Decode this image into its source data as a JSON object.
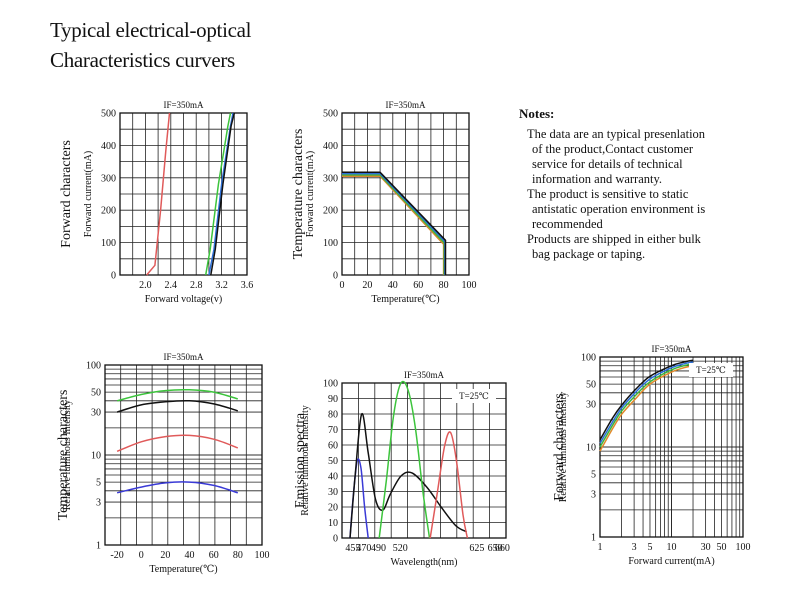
{
  "heading": {
    "line1": "Typical electrical-optical",
    "line2": "Characteristics curvers"
  },
  "notes": {
    "title": "Notes:",
    "items": [
      [
        "The data are an typical presenlation",
        "of the product,Contact customer",
        "service for details of technical",
        "information and warranty."
      ],
      [
        "The product is sensitive to static",
        "antistatic operation environment is",
        "recommended"
      ],
      [
        "Products are shipped in either bulk",
        "bag package or taping."
      ]
    ]
  },
  "chart_data": [
    {
      "id": "forward-voltage",
      "type": "line",
      "label": "IF=350mA",
      "ylabel_main": "Forward characters",
      "ylabel_sub": "Forward current(mA)",
      "xlabel": "Forward voltage(v)",
      "xlim": [
        1.6,
        3.6
      ],
      "ylim": [
        0,
        500
      ],
      "xticks": [
        "2.0",
        "2.4",
        "2.8",
        "3.2",
        "3.6"
      ],
      "xtick_values": [
        2.0,
        2.4,
        2.8,
        3.2,
        3.6
      ],
      "yticks": [
        "0",
        "100",
        "200",
        "300",
        "400",
        "500"
      ],
      "ytick_values": [
        0,
        100,
        200,
        300,
        400,
        500
      ],
      "series": [
        {
          "name": "red",
          "color": "#e05a5a",
          "points": [
            [
              2.02,
              0
            ],
            [
              2.15,
              30
            ],
            [
              2.24,
              200
            ],
            [
              2.32,
              380
            ],
            [
              2.38,
              500
            ]
          ]
        },
        {
          "name": "green",
          "color": "#3cc43c",
          "points": [
            [
              2.95,
              0
            ],
            [
              3.02,
              80
            ],
            [
              3.15,
              280
            ],
            [
              3.3,
              460
            ],
            [
              3.34,
              500
            ]
          ]
        },
        {
          "name": "blue",
          "color": "#2c6fd6",
          "points": [
            [
              3.0,
              0
            ],
            [
              3.08,
              80
            ],
            [
              3.2,
              280
            ],
            [
              3.34,
              460
            ],
            [
              3.38,
              500
            ]
          ]
        },
        {
          "name": "black",
          "color": "#111111",
          "points": [
            [
              3.03,
              0
            ],
            [
              3.1,
              80
            ],
            [
              3.22,
              280
            ],
            [
              3.35,
              460
            ],
            [
              3.4,
              500
            ]
          ]
        }
      ]
    },
    {
      "id": "temperature-current",
      "type": "line",
      "label": "IF=350mA",
      "ylabel_main": "Temperature characters",
      "ylabel_sub": "Forward current(mA)",
      "xlabel": "Temperature(℃)",
      "xlim": [
        0,
        100
      ],
      "ylim": [
        0,
        500
      ],
      "xticks": [
        "0",
        "20",
        "40",
        "60",
        "80",
        "100"
      ],
      "xtick_values": [
        0,
        20,
        40,
        60,
        80,
        100
      ],
      "yticks": [
        "0",
        "100",
        "200",
        "300",
        "400",
        "500"
      ],
      "ytick_values": [
        0,
        100,
        200,
        300,
        400,
        500
      ],
      "series": [
        {
          "name": "orange",
          "color": "#d9862b",
          "points": [
            [
              0,
              305
            ],
            [
              30,
              305
            ],
            [
              80,
              95
            ],
            [
              80,
              0
            ]
          ]
        },
        {
          "name": "green",
          "color": "#3cb43c",
          "points": [
            [
              0,
              309
            ],
            [
              30,
              309
            ],
            [
              80.5,
              99
            ],
            [
              80.5,
              0
            ]
          ]
        },
        {
          "name": "blue",
          "color": "#2c6fd6",
          "points": [
            [
              0,
              313
            ],
            [
              30,
              313
            ],
            [
              81,
              103
            ],
            [
              81,
              0
            ]
          ]
        },
        {
          "name": "black",
          "color": "#111111",
          "points": [
            [
              0,
              317
            ],
            [
              30,
              317
            ],
            [
              81.5,
              107
            ],
            [
              81.5,
              0
            ]
          ]
        }
      ]
    },
    {
      "id": "temperature-intensity",
      "type": "line",
      "label": "IF=350mA",
      "ylabel_main": "Temperature characters",
      "ylabel_sub": "Relative luminous Intensity",
      "xlabel": "Temperature(℃)",
      "xlim": [
        -30,
        100
      ],
      "ylim": [
        1,
        100
      ],
      "yscale": "log",
      "xticks": [
        "-20",
        "0",
        "20",
        "40",
        "60",
        "80",
        "100"
      ],
      "xtick_values": [
        -20,
        0,
        20,
        40,
        60,
        80,
        100
      ],
      "yticks": [
        "1",
        "3",
        "5",
        "10",
        "30",
        "50",
        "100"
      ],
      "ytick_values": [
        1,
        3,
        5,
        10,
        30,
        50,
        100
      ],
      "series": [
        {
          "name": "green",
          "color": "#3cc43c",
          "points": [
            [
              -20,
              40
            ],
            [
              0,
              47
            ],
            [
              20,
              52
            ],
            [
              40,
              53
            ],
            [
              60,
              50
            ],
            [
              80,
              42
            ]
          ]
        },
        {
          "name": "black",
          "color": "#111111",
          "points": [
            [
              -20,
              30
            ],
            [
              0,
              36
            ],
            [
              20,
              39
            ],
            [
              40,
              40
            ],
            [
              60,
              37
            ],
            [
              80,
              31
            ]
          ]
        },
        {
          "name": "red",
          "color": "#e05a5a",
          "points": [
            [
              -20,
              11
            ],
            [
              0,
              14
            ],
            [
              20,
              16
            ],
            [
              40,
              16.5
            ],
            [
              60,
              15
            ],
            [
              80,
              12
            ]
          ]
        },
        {
          "name": "blue",
          "color": "#3a3ad6",
          "points": [
            [
              -20,
              3.8
            ],
            [
              0,
              4.4
            ],
            [
              20,
              4.9
            ],
            [
              40,
              5
            ],
            [
              60,
              4.6
            ],
            [
              80,
              3.8
            ]
          ]
        }
      ]
    },
    {
      "id": "emission-spectra",
      "type": "line",
      "label": "IF=350mA",
      "annotation": "T=25℃",
      "ylabel_main": "Emission spectra",
      "ylabel_sub": "Relative luminous Intensity",
      "xlabel": "Wavelength(nm)",
      "xlim": [
        440,
        665
      ],
      "ylim": [
        0,
        100
      ],
      "xticks": [
        "455",
        "470",
        "490",
        "520",
        "625",
        "650",
        "660"
      ],
      "xtick_values": [
        455,
        470,
        490,
        520,
        625,
        650,
        660
      ],
      "xtick_positions": [
        455,
        470,
        490,
        520,
        625,
        650,
        660
      ],
      "yticks": [
        "0",
        "10",
        "20",
        "30",
        "40",
        "50",
        "60",
        "70",
        "80",
        "90",
        "100"
      ],
      "ytick_values": [
        0,
        10,
        20,
        30,
        40,
        50,
        60,
        70,
        80,
        90,
        100
      ],
      "series": [
        {
          "name": "blue",
          "color": "#3a3ad6",
          "points": [
            [
              451,
              0
            ],
            [
              456,
              30
            ],
            [
              461,
              50
            ],
            [
              466,
              45
            ],
            [
              471,
              20
            ],
            [
              476,
              0
            ]
          ]
        },
        {
          "name": "black",
          "color": "#111111",
          "points": [
            [
              451,
              0
            ],
            [
              458,
              40
            ],
            [
              467,
              80
            ],
            [
              476,
              55
            ],
            [
              486,
              25
            ],
            [
              496,
              18
            ],
            [
              506,
              28
            ],
            [
              521,
              40
            ],
            [
              536,
              42
            ],
            [
              556,
              33
            ],
            [
              576,
              20
            ],
            [
              596,
              8
            ],
            [
              611,
              4
            ]
          ]
        },
        {
          "name": "green",
          "color": "#3cc43c",
          "points": [
            [
              491,
              0
            ],
            [
              501,
              38
            ],
            [
              511,
              80
            ],
            [
              521,
              100
            ],
            [
              531,
              95
            ],
            [
              541,
              70
            ],
            [
              551,
              30
            ],
            [
              560,
              0
            ]
          ]
        },
        {
          "name": "red",
          "color": "#e05a5a",
          "points": [
            [
              561,
              0
            ],
            [
              571,
              30
            ],
            [
              581,
              60
            ],
            [
              589,
              68
            ],
            [
              597,
              50
            ],
            [
              606,
              15
            ],
            [
              612,
              0
            ]
          ]
        }
      ]
    },
    {
      "id": "forward-intensity",
      "type": "line",
      "label": "IF=350mA",
      "annotation": "T=25℃",
      "ylabel_main": "Forward characters",
      "ylabel_sub": "Relative luminous Intensity",
      "xlabel": "Forward current(mA)",
      "xlim": [
        1,
        100
      ],
      "ylim": [
        1,
        100
      ],
      "xscale": "log",
      "yscale": "log",
      "xticks": [
        "1",
        "3",
        "5",
        "10",
        "30",
        "50",
        "100"
      ],
      "xtick_values": [
        1,
        3,
        5,
        10,
        30,
        50,
        100
      ],
      "yticks": [
        "1",
        "3",
        "5",
        "10",
        "30",
        "50",
        "100"
      ],
      "ytick_values": [
        1,
        3,
        5,
        10,
        30,
        50,
        100
      ],
      "series": [
        {
          "name": "orange",
          "color": "#e08a2b",
          "points": [
            [
              1,
              9
            ],
            [
              1.5,
              16
            ],
            [
              2,
              23
            ],
            [
              3,
              33
            ],
            [
              5,
              50
            ],
            [
              10,
              68
            ],
            [
              15,
              76
            ],
            [
              20,
              80
            ]
          ]
        },
        {
          "name": "green",
          "color": "#3cb43c",
          "points": [
            [
              1,
              10
            ],
            [
              1.5,
              17.5
            ],
            [
              2,
              25
            ],
            [
              3,
              36
            ],
            [
              5,
              53
            ],
            [
              10,
              72
            ],
            [
              15,
              80
            ],
            [
              20,
              84
            ]
          ]
        },
        {
          "name": "blue",
          "color": "#2c6fd6",
          "points": [
            [
              1,
              11
            ],
            [
              1.5,
              19
            ],
            [
              2,
              27
            ],
            [
              3,
              39
            ],
            [
              5,
              57
            ],
            [
              10,
              76
            ],
            [
              15,
              84
            ],
            [
              20,
              88
            ]
          ]
        },
        {
          "name": "black",
          "color": "#111111",
          "points": [
            [
              1,
              12
            ],
            [
              1.5,
              21
            ],
            [
              2,
              29
            ],
            [
              3,
              42
            ],
            [
              5,
              61
            ],
            [
              10,
              80
            ],
            [
              15,
              88
            ],
            [
              20,
              92
            ]
          ]
        }
      ]
    }
  ]
}
